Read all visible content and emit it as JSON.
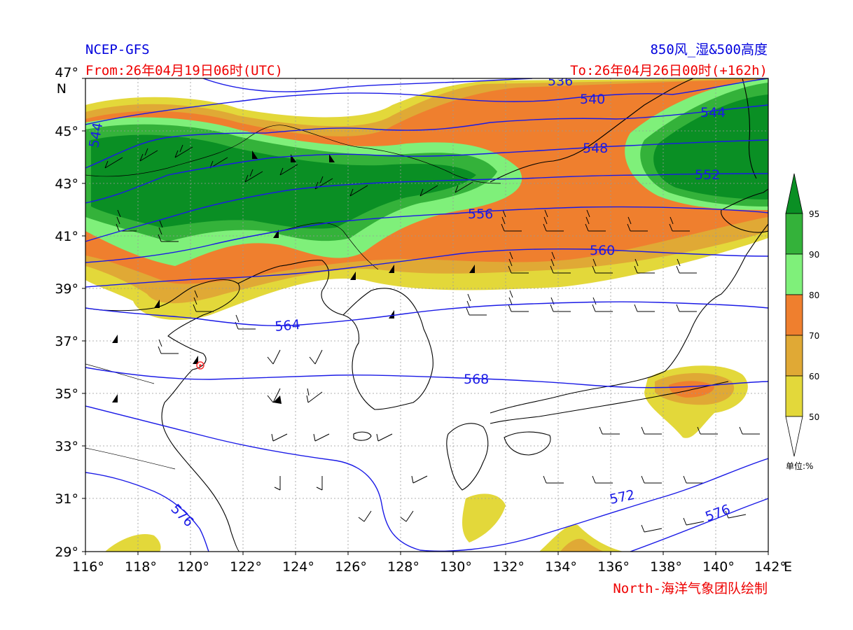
{
  "header": {
    "model": "NCEP-GFS",
    "product": "850风_湿&500高度",
    "from": "From:26年04月19日06时(UTC)",
    "to": "To:26年04月26日00时(+162h)",
    "credit": "North-海洋气象团队绘制"
  },
  "colors": {
    "title": "#0000dd",
    "time": "#ee0000",
    "contour": "#1a1ae6",
    "rh_50": "#e3d83a",
    "rh_60": "#e0a935",
    "rh_70": "#ef7f2e",
    "rh_80": "#7ff07a",
    "rh_90": "#34b23a",
    "rh_95": "#0a8f24"
  },
  "axes": {
    "lat_labels": [
      "47°",
      "45°",
      "43°",
      "41°",
      "39°",
      "37°",
      "35°",
      "33°",
      "31°",
      "29°"
    ],
    "lat_unit": "N",
    "lon_labels": [
      "116°",
      "118°",
      "120°",
      "122°",
      "124°",
      "126°",
      "128°",
      "130°",
      "132°",
      "134°",
      "136°",
      "138°",
      "140°",
      "142°"
    ],
    "lon_unit": "E",
    "lat_range": [
      29,
      47
    ],
    "lon_range": [
      116,
      142
    ]
  },
  "colorbar": {
    "levels": [
      "95",
      "90",
      "80",
      "70",
      "60",
      "50"
    ],
    "unit": "单位:%"
  },
  "contours": [
    {
      "label": "536"
    },
    {
      "label": "540"
    },
    {
      "label": "544"
    },
    {
      "label": "544"
    },
    {
      "label": "548"
    },
    {
      "label": "552"
    },
    {
      "label": "556"
    },
    {
      "label": "560"
    },
    {
      "label": "564"
    },
    {
      "label": "568"
    },
    {
      "label": "572"
    },
    {
      "label": "576"
    },
    {
      "label": "576"
    }
  ]
}
